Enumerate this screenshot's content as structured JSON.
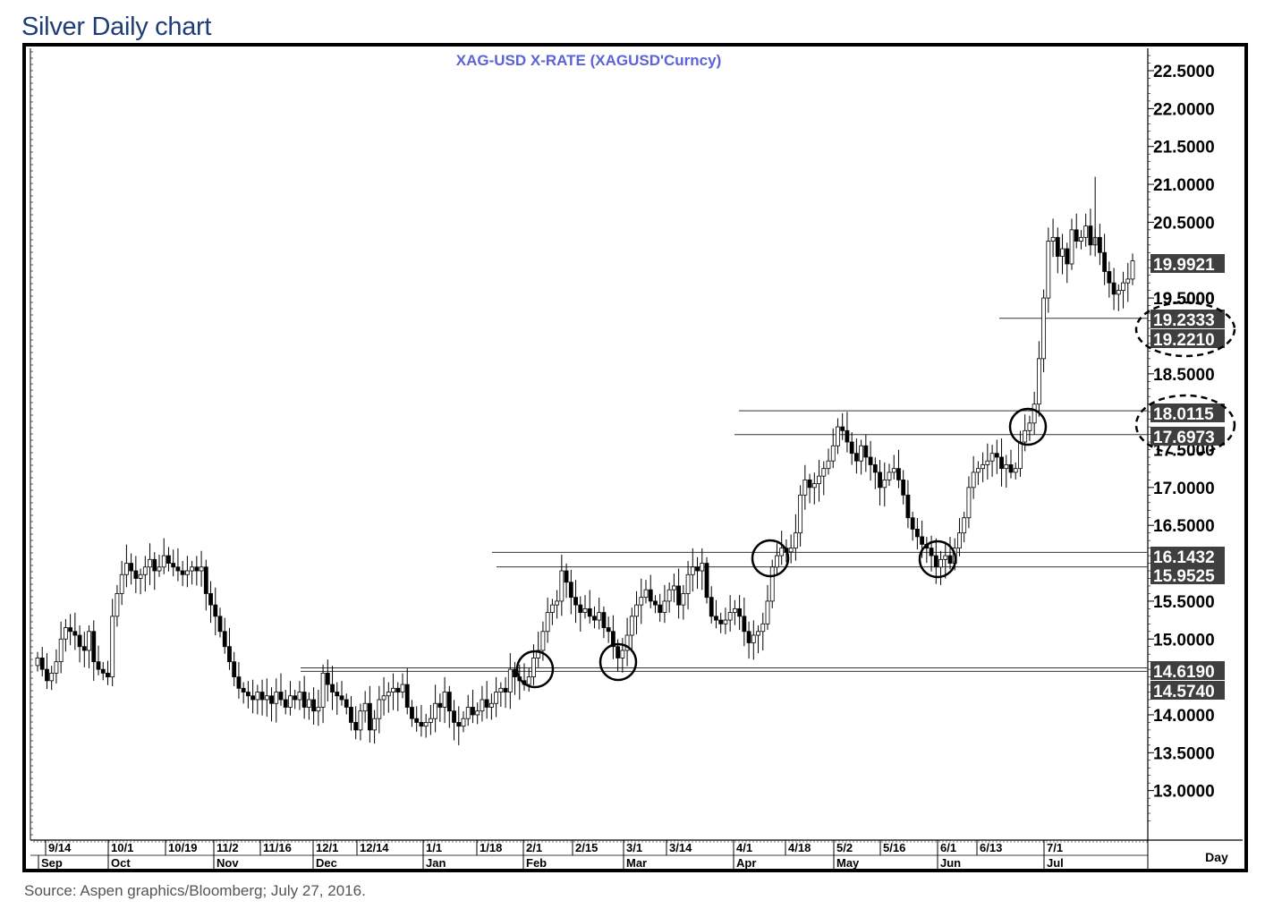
{
  "page": {
    "title": "Silver Daily chart",
    "source": "Source: Aspen graphics/Bloomberg; July 27, 2016."
  },
  "colors": {
    "title": "#1f3d7a",
    "chart_title": "#5b63d6",
    "tag_bg": "#3f3f3f",
    "tag_text": "#ffffff",
    "candle_up": "#ffffff",
    "candle_down": "#000000"
  },
  "chart_data": {
    "type": "candlestick",
    "title": "XAG-USD  X-RATE  (XAGUSD'Curncy)",
    "x_unit_label": "Day",
    "ylim": [
      12.5,
      22.8
    ],
    "y_ticks": [
      "22.5000",
      "22.0000",
      "21.5000",
      "21.0000",
      "20.5000",
      "19.5000",
      "18.5000",
      "17.0000",
      "16.5000",
      "15.5000",
      "15.0000",
      "14.0000",
      "13.5000",
      "13.0000"
    ],
    "x_day_ticks": [
      "9/14",
      "10/1",
      "10/19",
      "11/2",
      "11/16",
      "12/1",
      "12/14",
      "1/1",
      "1/18",
      "2/1",
      "2/15",
      "3/1",
      "3/14",
      "4/1",
      "4/18",
      "5/2",
      "5/16",
      "6/1",
      "6/13",
      "7/1"
    ],
    "x_month_ticks": [
      "Sep",
      "Oct",
      "Nov",
      "Dec",
      "Jan",
      "Feb",
      "Mar",
      "Apr",
      "May",
      "Jun",
      "Jul"
    ],
    "price_tags": [
      "19.9921",
      "19.2333",
      "19.2210",
      "18.0115",
      "17.6973",
      "16.1432",
      "15.9525",
      "14.6190",
      "14.5740"
    ],
    "partially_hidden_ticks": [
      "19.5000",
      "17.5000"
    ],
    "horizontal_levels": [
      19.2333,
      18.0115,
      17.6973,
      16.1432,
      15.9525,
      14.619,
      14.574
    ],
    "highlighted_tags": [
      "19.2333/19.2210",
      "18.0115/17.6973"
    ],
    "closes": [
      14.75,
      14.6,
      14.45,
      14.55,
      14.7,
      15.0,
      15.15,
      15.1,
      15.05,
      14.9,
      14.85,
      15.1,
      14.7,
      14.6,
      14.55,
      14.5,
      15.3,
      15.6,
      15.85,
      16.0,
      15.9,
      15.8,
      15.85,
      15.95,
      16.05,
      15.9,
      15.95,
      16.1,
      16.0,
      15.95,
      15.9,
      15.85,
      15.9,
      15.95,
      15.9,
      15.95,
      15.6,
      15.45,
      15.3,
      15.1,
      14.9,
      14.7,
      14.5,
      14.35,
      14.3,
      14.25,
      14.2,
      14.3,
      14.2,
      14.25,
      14.15,
      14.3,
      14.2,
      14.1,
      14.25,
      14.2,
      14.3,
      14.1,
      14.2,
      14.05,
      14.1,
      14.55,
      14.4,
      14.3,
      14.25,
      14.2,
      14.1,
      13.9,
      13.8,
      14.05,
      14.15,
      13.8,
      13.95,
      14.2,
      14.25,
      14.3,
      14.35,
      14.3,
      14.4,
      14.1,
      13.95,
      13.9,
      13.85,
      13.9,
      13.95,
      14.15,
      14.1,
      14.3,
      14.05,
      13.9,
      13.85,
      13.95,
      14.1,
      14.0,
      14.05,
      14.2,
      14.1,
      14.15,
      14.3,
      14.35,
      14.3,
      14.6,
      14.5,
      14.45,
      14.4,
      14.5,
      14.75,
      14.85,
      15.1,
      15.35,
      15.45,
      15.5,
      15.9,
      15.75,
      15.55,
      15.45,
      15.35,
      15.4,
      15.3,
      15.25,
      15.35,
      15.15,
      15.1,
      14.9,
      14.75,
      14.85,
      15.05,
      15.3,
      15.45,
      15.55,
      15.65,
      15.5,
      15.45,
      15.35,
      15.5,
      15.65,
      15.7,
      15.45,
      15.6,
      15.85,
      15.95,
      15.9,
      16.0,
      15.55,
      15.3,
      15.25,
      15.2,
      15.25,
      15.35,
      15.4,
      15.3,
      15.1,
      14.95,
      15.05,
      15.1,
      15.2,
      15.5,
      15.95,
      16.1,
      16.2,
      16.15,
      16.2,
      16.4,
      16.9,
      17.1,
      17.0,
      17.05,
      17.15,
      17.25,
      17.35,
      17.55,
      17.8,
      17.75,
      17.6,
      17.45,
      17.35,
      17.55,
      17.4,
      17.3,
      17.2,
      17.0,
      17.1,
      17.2,
      17.25,
      17.1,
      16.9,
      16.6,
      16.45,
      16.35,
      16.25,
      16.2,
      16.1,
      15.95,
      16.05,
      16.1,
      16.0,
      16.2,
      16.4,
      16.6,
      17.0,
      17.2,
      17.25,
      17.3,
      17.35,
      17.45,
      17.4,
      17.25,
      17.3,
      17.2,
      17.25,
      17.6,
      17.75,
      17.85,
      18.1,
      18.7,
      19.5,
      20.25,
      20.3,
      20.05,
      20.15,
      19.95,
      20.4,
      20.25,
      20.3,
      20.45,
      20.2,
      20.3,
      20.1,
      19.85,
      19.7,
      19.55,
      19.6,
      19.7,
      19.75,
      19.99
    ]
  }
}
